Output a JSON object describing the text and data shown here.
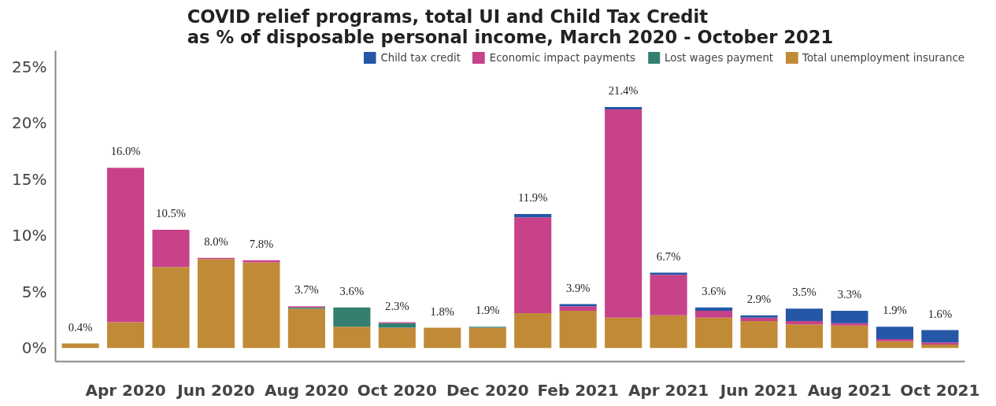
{
  "chart_data": {
    "type": "bar",
    "stacked": true,
    "title": "COVID relief programs, total UI and Child Tax Credit\nas % of disposable personal income, March 2020 - October 2021",
    "categories": [
      null,
      "Apr 2020",
      null,
      "Jun 2020",
      null,
      "Aug 2020",
      null,
      "Oct 2020",
      null,
      "Dec 2020",
      null,
      "Feb 2021",
      null,
      "Apr 2021",
      null,
      "Jun 2021",
      null,
      "Aug 2021",
      null,
      "Oct 2021"
    ],
    "series": [
      {
        "name": "Total unemployment insurance",
        "color": "#c18a37",
        "values": [
          0.4,
          2.3,
          7.2,
          7.9,
          7.6,
          3.5,
          1.9,
          1.8,
          1.8,
          1.8,
          3.1,
          3.3,
          2.7,
          2.9,
          2.7,
          2.4,
          2.1,
          2.0,
          0.6,
          0.3
        ]
      },
      {
        "name": "Lost wages payment",
        "color": "#338070",
        "values": [
          0,
          0,
          0,
          0,
          0,
          0.1,
          1.7,
          0.4,
          0,
          0.1,
          0,
          0,
          0,
          0,
          0,
          0,
          0,
          0,
          0,
          0
        ]
      },
      {
        "name": "Economic impact payments",
        "color": "#c74289",
        "values": [
          0,
          13.7,
          3.3,
          0.1,
          0.2,
          0.1,
          0,
          0.1,
          0,
          0,
          8.5,
          0.4,
          18.5,
          3.6,
          0.6,
          0.3,
          0.3,
          0.2,
          0.2,
          0.2
        ]
      },
      {
        "name": "Child tax credit",
        "color": "#2457a6",
        "values": [
          0,
          0,
          0,
          0,
          0,
          0,
          0,
          0,
          0,
          0,
          0.3,
          0.2,
          0.2,
          0.2,
          0.3,
          0.2,
          1.1,
          1.1,
          1.1,
          1.1
        ]
      }
    ],
    "totals": [
      "0.4%",
      "16.0%",
      "10.5%",
      "8.0%",
      "7.8%",
      "3.7%",
      "3.6%",
      "2.3%",
      "1.8%",
      "1.9%",
      "11.9%",
      "3.9%",
      "21.4%",
      "6.7%",
      "3.6%",
      "2.9%",
      "3.5%",
      "3.3%",
      "1.9%",
      "1.6%"
    ],
    "ylim": [
      -1.2,
      26.4
    ],
    "yticks": [
      {
        "value": 0,
        "label": "0%"
      },
      {
        "value": 5,
        "label": "5%"
      },
      {
        "value": 10,
        "label": "10%"
      },
      {
        "value": 15,
        "label": "15%"
      },
      {
        "value": 20,
        "label": "20%"
      },
      {
        "value": 25,
        "label": "25%"
      }
    ],
    "grid": false,
    "legend": "top right"
  }
}
